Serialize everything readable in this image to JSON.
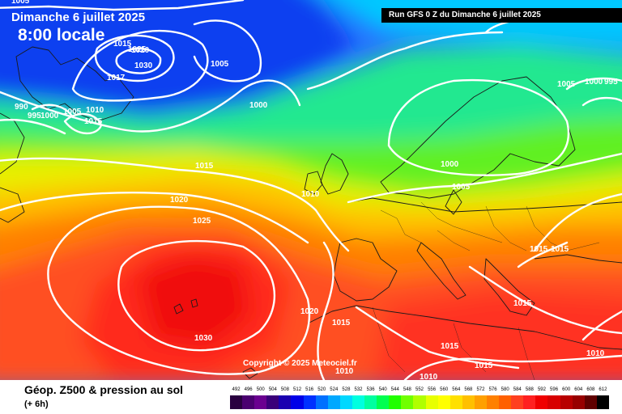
{
  "header": {
    "run_info": "Run GFS 0 Z du Dimanche 6 juillet 2025",
    "date": "Dimanche 6 juillet 2025",
    "local_time": "8:00 locale"
  },
  "footer": {
    "product_title": "Géop. Z500 & pression au sol",
    "lead_time": "(+ 6h)",
    "copyright": "Copyright © 2025 Meteociel.fr"
  },
  "legend": {
    "unit_values": [
      "492",
      "496",
      "500",
      "504",
      "508",
      "512",
      "516",
      "520",
      "524",
      "528",
      "532",
      "536",
      "540",
      "544",
      "548",
      "552",
      "556",
      "560",
      "564",
      "568",
      "572",
      "576",
      "580",
      "584",
      "588",
      "592",
      "596",
      "600",
      "604",
      "608",
      "612"
    ],
    "colors": [
      "#2a0040",
      "#4a0070",
      "#6a0090",
      "#3a007a",
      "#1a00b0",
      "#0000e8",
      "#0030ff",
      "#0070ff",
      "#00a8ff",
      "#00d8ff",
      "#00ffe0",
      "#00ffa0",
      "#00ff50",
      "#20ff00",
      "#70ff00",
      "#b0ff00",
      "#e8ff00",
      "#ffff00",
      "#ffe000",
      "#ffc000",
      "#ffa000",
      "#ff8000",
      "#ff6000",
      "#ff4020",
      "#ff2020",
      "#f00000",
      "#d80000",
      "#b80000",
      "#980000",
      "#600000",
      "#000000"
    ]
  },
  "pressure_labels": [
    {
      "text": "1005"
    },
    {
      "text": "1015"
    },
    {
      "text": "1025"
    },
    {
      "text": "1030"
    },
    {
      "text": "1020"
    },
    {
      "text": "1017"
    },
    {
      "text": "1005"
    },
    {
      "text": "990"
    },
    {
      "text": "995"
    },
    {
      "text": "1000"
    },
    {
      "text": "1005"
    },
    {
      "text": "1010"
    },
    {
      "text": "1015"
    },
    {
      "text": "1000"
    },
    {
      "text": "1015"
    },
    {
      "text": "1020"
    },
    {
      "text": "1025"
    },
    {
      "text": "1010"
    },
    {
      "text": "1000"
    },
    {
      "text": "1005"
    },
    {
      "text": "1005"
    },
    {
      "text": "1000"
    },
    {
      "text": "995"
    },
    {
      "text": "1015"
    },
    {
      "text": "1015"
    },
    {
      "text": "1015"
    },
    {
      "text": "1030"
    },
    {
      "text": "1020"
    },
    {
      "text": "1015"
    },
    {
      "text": "1010"
    },
    {
      "text": "1015"
    },
    {
      "text": "1015"
    },
    {
      "text": "1010"
    },
    {
      "text": "1010"
    }
  ]
}
